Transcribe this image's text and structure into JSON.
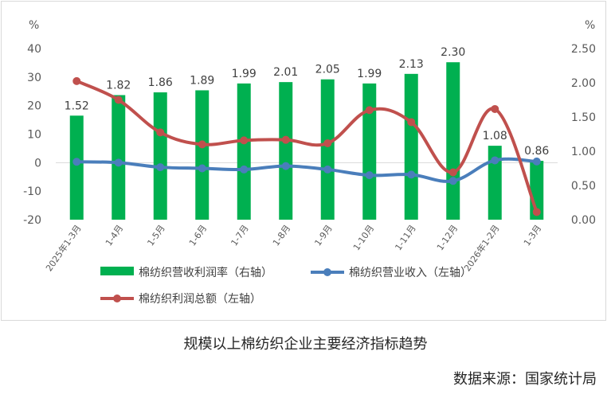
{
  "caption": "规模以上棉纺织企业主要经济指标趋势",
  "source": "数据来源：国家统计局",
  "chart_data": {
    "type": "bar+line",
    "categories": [
      "2025年1-3月",
      "1-4月",
      "1-5月",
      "1-6月",
      "1-7月",
      "1-8月",
      "1-9月",
      "1-10月",
      "1-11月",
      "1-12月",
      "2026年1-2月",
      "1-3月"
    ],
    "left_axis": {
      "unit": "%",
      "ticks": [
        "40",
        "30",
        "20",
        "10",
        "0",
        "-10",
        "-20"
      ],
      "ylim": [
        -20,
        40
      ]
    },
    "right_axis": {
      "unit": "%",
      "ticks": [
        "2.50",
        "2.00",
        "1.50",
        "1.00",
        "0.50",
        "0.00"
      ],
      "ylim": [
        0,
        2.5
      ]
    },
    "series": [
      {
        "name": "棉纺织营收利润率（右轴）",
        "type": "bar",
        "axis": "right",
        "color": "#00b050",
        "values": [
          1.52,
          1.82,
          1.86,
          1.89,
          1.99,
          2.01,
          2.05,
          1.99,
          2.13,
          2.3,
          1.08,
          0.86
        ],
        "labels": [
          "1.52",
          "1.82",
          "1.86",
          "1.89",
          "1.99",
          "2.01",
          "2.05",
          "1.99",
          "2.13",
          "2.30",
          "1.08",
          "0.86"
        ]
      },
      {
        "name": "棉纺织营业收入（左轴）",
        "type": "line",
        "axis": "left",
        "color": "#4a7ebb",
        "values": [
          0.3,
          0.0,
          -1.6,
          -2.0,
          -2.4,
          -1.2,
          -2.4,
          -4.4,
          -4.2,
          -6.4,
          0.8,
          0.4
        ]
      },
      {
        "name": "棉纺织利润总额（左轴）",
        "type": "line",
        "axis": "left",
        "color": "#c0504d",
        "values": [
          28.6,
          22.0,
          10.6,
          6.4,
          7.8,
          8.0,
          6.8,
          18.4,
          14.2,
          -3.4,
          18.8,
          -17.3
        ]
      }
    ],
    "grid": false,
    "legend": "bottom"
  }
}
